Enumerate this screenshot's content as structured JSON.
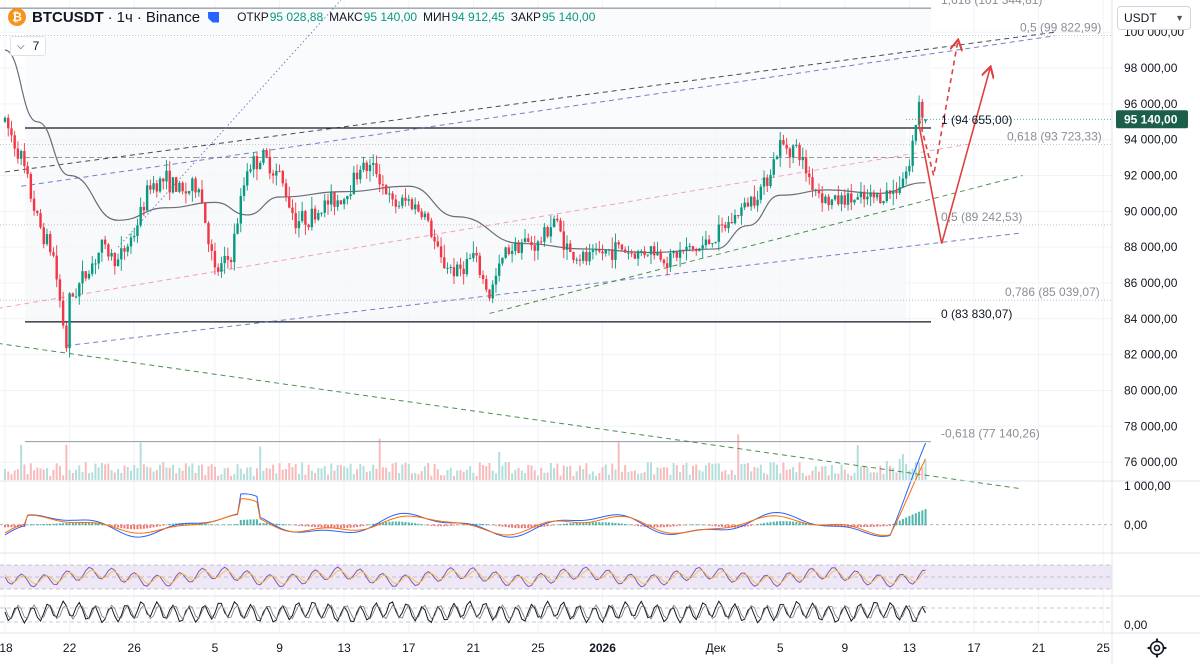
{
  "header": {
    "symbol": "BTCUSDT",
    "interval": "1ч",
    "exchange": "Binance",
    "coin_badge": "₿",
    "ohlc": [
      {
        "key": "ОТКР",
        "value": "95 028,88"
      },
      {
        "key": "МАКС",
        "value": "95 140,00"
      },
      {
        "key": "МИН",
        "value": "94 912,45"
      },
      {
        "key": "ЗАКР",
        "value": "95 140,00"
      }
    ],
    "indicator_toggle": "7"
  },
  "currency_select": {
    "value": "USDT"
  },
  "colors": {
    "up": "#089981",
    "down": "#f23645",
    "price_label_bg": "#1b5e4a",
    "volume_up": "#b2dfdb",
    "volume_down": "#f8bbbc",
    "ma": "#6a6d78",
    "forecast": "#e04040",
    "rsi_band": "#ede7f6",
    "rsi_line": "#7e57c2"
  },
  "icons": {
    "coin": "bitcoin-icon",
    "settings": "gear-icon",
    "dropdown": "chevron-down-icon"
  },
  "chart_data": {
    "type": "candlestick",
    "price_scale": {
      "ticks": [
        "100 000,00",
        "98 000,00",
        "96 000,00",
        "94 000,00",
        "92 000,00",
        "90 000,00",
        "88 000,00",
        "86 000,00",
        "84 000,00",
        "82 000,00",
        "80 000,00",
        "78 000,00",
        "76 000,00"
      ],
      "range": [
        75000,
        101800
      ]
    },
    "last_price": "95 140,00",
    "x_axis": {
      "ticks": [
        "18",
        "22",
        "26",
        "Дек",
        "5",
        "9",
        "13",
        "17",
        "21",
        "25",
        "2026",
        "5",
        "9",
        "13",
        "17",
        "21",
        "25"
      ],
      "bold_tick": "2026"
    },
    "price_anchors": [
      {
        "x": "18",
        "y": 95000
      },
      {
        "x": "19",
        "y": 93000
      },
      {
        "x": "20",
        "y": 89500
      },
      {
        "x": "21",
        "y": 87500
      },
      {
        "x": "21.8",
        "y": 82500
      },
      {
        "x": "22",
        "y": 85000
      },
      {
        "x": "23",
        "y": 86500
      },
      {
        "x": "24",
        "y": 88000
      },
      {
        "x": "25",
        "y": 87200
      },
      {
        "x": "26",
        "y": 88800
      },
      {
        "x": "27",
        "y": 91500
      },
      {
        "x": "28",
        "y": 91800
      },
      {
        "x": "29",
        "y": 91000
      },
      {
        "x": "30",
        "y": 91500
      },
      {
        "x": "Дек 1",
        "y": 86500
      },
      {
        "x": "Дек 2",
        "y": 87500
      },
      {
        "x": "Дек 3",
        "y": 92500
      },
      {
        "x": "Дек 4",
        "y": 93000
      },
      {
        "x": "Дек 5",
        "y": 92000
      },
      {
        "x": "Дек 6",
        "y": 89500
      },
      {
        "x": "Дек 7",
        "y": 89700
      },
      {
        "x": "Дек 8",
        "y": 90500
      },
      {
        "x": "Дек 9",
        "y": 90800
      },
      {
        "x": "Дек 10",
        "y": 92500
      },
      {
        "x": "Дек 11",
        "y": 92300
      },
      {
        "x": "Дек 12",
        "y": 90300
      },
      {
        "x": "Дек 13",
        "y": 90600
      },
      {
        "x": "Дек 14",
        "y": 89800
      },
      {
        "x": "Дек 15",
        "y": 87200
      },
      {
        "x": "Дек 16",
        "y": 86600
      },
      {
        "x": "Дек 17",
        "y": 87500
      },
      {
        "x": "Дек 18",
        "y": 85300
      },
      {
        "x": "Дек 19",
        "y": 87800
      },
      {
        "x": "Дек 20",
        "y": 88300
      },
      {
        "x": "Дек 21",
        "y": 88100
      },
      {
        "x": "Дек 22",
        "y": 89600
      },
      {
        "x": "Дек 23",
        "y": 87600
      },
      {
        "x": "Дек 24",
        "y": 87300
      },
      {
        "x": "Дек 25",
        "y": 87700
      },
      {
        "x": "Дек 26",
        "y": 88000
      },
      {
        "x": "Дек 27",
        "y": 87600
      },
      {
        "x": "Дек 28",
        "y": 87900
      },
      {
        "x": "Дек 29",
        "y": 87300
      },
      {
        "x": "Дек 30",
        "y": 87800
      },
      {
        "x": "Дек 31",
        "y": 87900
      },
      {
        "x": "Янв 1",
        "y": 88600
      },
      {
        "x": "Янв 2",
        "y": 89500
      },
      {
        "x": "Янв 3",
        "y": 90500
      },
      {
        "x": "Янв 4",
        "y": 91500
      },
      {
        "x": "Янв 5",
        "y": 93700
      },
      {
        "x": "Янв 6",
        "y": 93500
      },
      {
        "x": "Янв 7",
        "y": 91500
      },
      {
        "x": "Янв 8",
        "y": 90500
      },
      {
        "x": "Янв 9",
        "y": 90700
      },
      {
        "x": "Янв 10",
        "y": 90600
      },
      {
        "x": "Янв 11",
        "y": 90800
      },
      {
        "x": "Янв 12",
        "y": 91100
      },
      {
        "x": "Янв 13",
        "y": 92500
      },
      {
        "x": "Янв 13.6",
        "y": 96200
      },
      {
        "x": "Янв 14",
        "y": 95140
      }
    ],
    "moving_average": [
      {
        "x": "18",
        "y": 99000
      },
      {
        "x": "20",
        "y": 95000
      },
      {
        "x": "22",
        "y": 92000
      },
      {
        "x": "25",
        "y": 89500
      },
      {
        "x": "28",
        "y": 90200
      },
      {
        "x": "Дек 1",
        "y": 90500
      },
      {
        "x": "Дек 3",
        "y": 89800
      },
      {
        "x": "Дек 5",
        "y": 90800
      },
      {
        "x": "Дек 9",
        "y": 91100
      },
      {
        "x": "Дек 13",
        "y": 91400
      },
      {
        "x": "Дек 16",
        "y": 89700
      },
      {
        "x": "Дек 20",
        "y": 88200
      },
      {
        "x": "Дек 24",
        "y": 87900
      },
      {
        "x": "Дек 28",
        "y": 87700
      },
      {
        "x": "Янв 1",
        "y": 87900
      },
      {
        "x": "Янв 3",
        "y": 89200
      },
      {
        "x": "Янв 5",
        "y": 90900
      },
      {
        "x": "Янв 8",
        "y": 91200
      },
      {
        "x": "Янв 11",
        "y": 91000
      },
      {
        "x": "Янв 14",
        "y": 91600
      }
    ],
    "horizontal_lines": [
      {
        "name": "range-top",
        "price": 94655
      },
      {
        "name": "range-bottom",
        "price": 83830
      },
      {
        "name": "range-mid",
        "price": 93000
      },
      {
        "name": "fib-1-618-line",
        "price": 101344.81
      },
      {
        "name": "fib-neg-0-618-line",
        "price": 77140.26
      }
    ],
    "fibonacci": [
      {
        "level": "1,618 (101 344,81)",
        "price": 101344.81,
        "tone": "muted"
      },
      {
        "level": "0,5 (99 822,99)",
        "price": 99822.99,
        "tone": "muted"
      },
      {
        "level": "1 (94 655,00)",
        "price": 94655,
        "tone": "dark"
      },
      {
        "level": "0,618 (93 723,33)",
        "price": 93723.33,
        "tone": "muted"
      },
      {
        "level": "0,5 (89 242,53)",
        "price": 89242.53,
        "tone": "muted"
      },
      {
        "level": "0,786 (85 039,07)",
        "price": 85039.07,
        "tone": "muted"
      },
      {
        "level": "0 (83 830,07)",
        "price": 83830.07,
        "tone": "dark"
      },
      {
        "level": "-0,618 (77 140,26)",
        "price": 77140.26,
        "tone": "muted"
      }
    ],
    "trend_lines": [
      {
        "name": "upper-channel",
        "from": [
          "18",
          92200
        ],
        "to": [
          "Янв 22",
          100000
        ],
        "style": "dashed",
        "color": "#2c2f3a"
      },
      {
        "name": "upper-channel-2",
        "from": [
          "19",
          91400
        ],
        "to": [
          "Янв 22",
          99800
        ],
        "style": "dashed",
        "color": "#5c6bc0"
      },
      {
        "name": "lower-channel",
        "from": [
          "21.8",
          82500
        ],
        "to": [
          "Янв 20",
          88800
        ],
        "style": "dashed",
        "color": "#5c6bc0"
      },
      {
        "name": "support-line",
        "from": [
          "Дек 18",
          84300
        ],
        "to": [
          "Янв 20",
          92000
        ],
        "style": "dashed",
        "color": "#2e7d32"
      },
      {
        "name": "descending-line",
        "from": [
          "17",
          82700
        ],
        "to": [
          "Янв 20",
          74500
        ],
        "style": "dashed",
        "color": "#2e7d32"
      },
      {
        "name": "pink-channel",
        "from": [
          "17",
          84500
        ],
        "to": [
          "Янв 17",
          93800
        ],
        "style": "dashed",
        "color": "#f48fb1"
      },
      {
        "name": "steep-dotted",
        "from": [
          "25",
          88000
        ],
        "to": [
          "Дек 11",
          104000
        ],
        "style": "dotted",
        "color": "#5c6bc0"
      }
    ],
    "forecast_paths": [
      {
        "name": "forecast-solid",
        "points": [
          [
            "Янв 13.6",
            94800
          ],
          [
            "Янв 15",
            88200
          ],
          [
            "Янв 18",
            98000
          ]
        ],
        "style": "solid"
      },
      {
        "name": "forecast-dashed",
        "points": [
          [
            "Янв 13.6",
            95200
          ],
          [
            "Янв 14.5",
            92000
          ],
          [
            "Янв 16",
            99500
          ]
        ],
        "style": "dashed"
      }
    ],
    "oscillator": {
      "ticks": [
        "1 000,00",
        "0,00"
      ],
      "range": [
        -700,
        1100
      ]
    },
    "lower_panel": {
      "ticks": [
        "0,00"
      ]
    }
  }
}
